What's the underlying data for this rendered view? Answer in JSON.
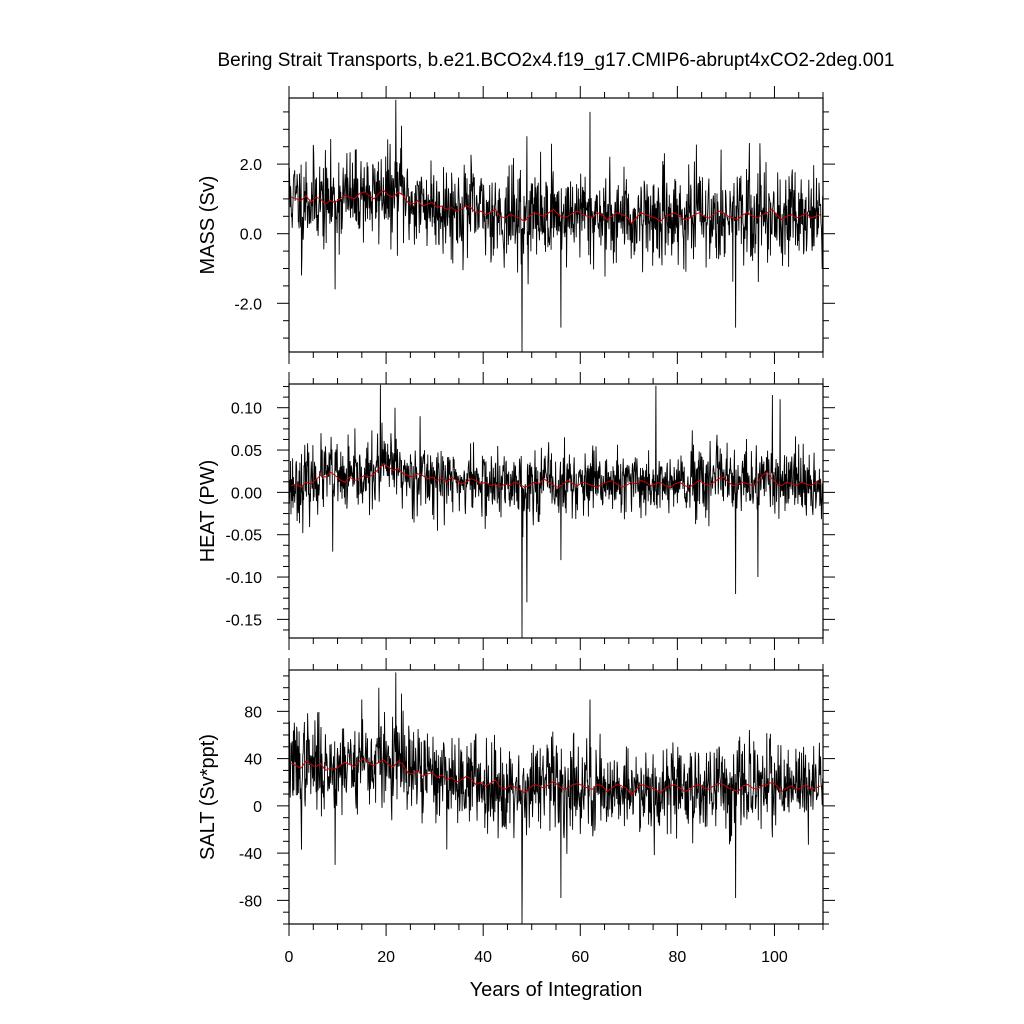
{
  "chart_data": {
    "type": "line",
    "title": "Bering Strait Transports, b.e21.BCO2x4.f19_g17.CMIP6-abrupt4xCO2-2deg.001",
    "xlabel": "Years of Integration",
    "xlim": [
      0,
      110
    ],
    "xticks": [
      0,
      20,
      40,
      60,
      80,
      100
    ],
    "series_colors": {
      "monthly": "#000000",
      "annual_mean": "#cc0000"
    },
    "panels": [
      {
        "name": "mass",
        "ylabel": "MASS (Sv)",
        "ylim": [
          -3.4,
          3.9
        ],
        "yticks": [
          2.0,
          0.0,
          -2.0
        ],
        "yticklabels": [
          "2.0",
          "0.0",
          "-2.0"
        ],
        "annual_mean": [
          1.05,
          1.0,
          0.95,
          1.1,
          0.9,
          1.05,
          1.0,
          0.85,
          0.95,
          0.9,
          1.0,
          1.1,
          1.05,
          1.0,
          1.15,
          1.2,
          1.1,
          1.0,
          1.15,
          1.25,
          1.1,
          1.05,
          1.2,
          1.1,
          0.9,
          0.85,
          0.95,
          0.8,
          0.85,
          0.9,
          0.75,
          0.8,
          0.7,
          0.75,
          0.65,
          0.7,
          0.8,
          0.75,
          0.6,
          0.65,
          0.55,
          0.6,
          0.7,
          0.5,
          0.45,
          0.55,
          0.5,
          0.45,
          0.35,
          0.5,
          0.6,
          0.55,
          0.5,
          0.6,
          0.7,
          0.55,
          0.45,
          0.5,
          0.6,
          0.65,
          0.55,
          0.5,
          0.45,
          0.6,
          0.55,
          0.4,
          0.5,
          0.6,
          0.55,
          0.5,
          0.3,
          0.45,
          0.6,
          0.55,
          0.5,
          0.45,
          0.35,
          0.5,
          0.55,
          0.6,
          0.5,
          0.4,
          0.45,
          0.55,
          0.6,
          0.5,
          0.45,
          0.55,
          0.65,
          0.6,
          0.5,
          0.45,
          0.4,
          0.55,
          0.6,
          0.5,
          0.45,
          0.55,
          0.6,
          0.7,
          0.55,
          0.4,
          0.5,
          0.55,
          0.45,
          0.5,
          0.6,
          0.45,
          0.5,
          0.55
        ],
        "noise_sd": 0.65,
        "spikes": [
          [
            22.0,
            3.85
          ],
          [
            23.2,
            3.1
          ],
          [
            48.0,
            -3.4
          ],
          [
            62.0,
            3.5
          ],
          [
            56.0,
            -2.7
          ],
          [
            92.0,
            -2.7
          ],
          [
            97.0,
            2.6
          ],
          [
            9.5,
            -1.6
          ],
          [
            2.6,
            -1.2
          ],
          [
            49.0,
            2.8
          ]
        ],
        "seed": 11
      },
      {
        "name": "heat",
        "ylabel": "HEAT (PW)",
        "ylim": [
          -0.172,
          0.128
        ],
        "yticks": [
          0.1,
          0.05,
          0.0,
          -0.05,
          -0.1,
          -0.15
        ],
        "yticklabels": [
          "0.10",
          "0.05",
          "0.00",
          "-0.05",
          "-0.10",
          "-0.15"
        ],
        "annual_mean": [
          0.008,
          0.01,
          0.006,
          0.012,
          0.01,
          0.015,
          0.02,
          0.018,
          0.024,
          0.02,
          0.015,
          0.012,
          0.018,
          0.014,
          0.016,
          0.02,
          0.018,
          0.022,
          0.028,
          0.034,
          0.03,
          0.026,
          0.028,
          0.022,
          0.02,
          0.018,
          0.022,
          0.02,
          0.016,
          0.018,
          0.014,
          0.016,
          0.012,
          0.018,
          0.014,
          0.01,
          0.012,
          0.016,
          0.014,
          0.01,
          0.012,
          0.008,
          0.01,
          0.006,
          0.01,
          0.008,
          0.012,
          0.01,
          0.006,
          0.008,
          0.012,
          0.01,
          0.016,
          0.012,
          0.008,
          0.006,
          0.01,
          0.014,
          0.01,
          0.008,
          0.012,
          0.01,
          0.008,
          0.006,
          0.01,
          0.012,
          0.014,
          0.01,
          0.006,
          0.008,
          0.012,
          0.01,
          0.014,
          0.012,
          0.008,
          0.01,
          0.012,
          0.008,
          0.006,
          0.01,
          0.012,
          0.008,
          0.006,
          0.01,
          0.014,
          0.01,
          0.008,
          0.012,
          0.016,
          0.018,
          0.012,
          0.008,
          0.01,
          0.012,
          0.01,
          0.008,
          0.012,
          0.02,
          0.024,
          0.016,
          0.01,
          0.008,
          0.012,
          0.01,
          0.008,
          0.012,
          0.01,
          0.008,
          0.012,
          0.01
        ],
        "noise_sd": 0.02,
        "spikes": [
          [
            18.8,
            0.127
          ],
          [
            21.8,
            0.1
          ],
          [
            48.0,
            -0.172
          ],
          [
            49.0,
            -0.13
          ],
          [
            9.0,
            -0.07
          ],
          [
            75.6,
            0.126
          ],
          [
            99.6,
            0.115
          ],
          [
            101.2,
            0.11
          ],
          [
            92.0,
            -0.12
          ],
          [
            56.0,
            -0.08
          ],
          [
            27.0,
            0.09
          ],
          [
            96.6,
            -0.1
          ]
        ],
        "seed": 23
      },
      {
        "name": "salt",
        "ylabel": "SALT (Sv*ppt)",
        "ylim": [
          -100,
          115
        ],
        "yticks": [
          80,
          40,
          0,
          -40,
          -80
        ],
        "yticklabels": [
          "80",
          "40",
          "0",
          "-40",
          "-80"
        ],
        "annual_mean": [
          36,
          34,
          32,
          38,
          35,
          33,
          36,
          30,
          32,
          31,
          34,
          37,
          35,
          33,
          38,
          40,
          36,
          34,
          37,
          39,
          35,
          33,
          38,
          35,
          28,
          27,
          30,
          25,
          27,
          28,
          24,
          26,
          22,
          24,
          20,
          22,
          25,
          23,
          18,
          20,
          17,
          19,
          22,
          16,
          14,
          17,
          16,
          14,
          11,
          15,
          18,
          17,
          15,
          18,
          21,
          17,
          14,
          15,
          18,
          19,
          17,
          15,
          14,
          18,
          17,
          12,
          15,
          18,
          17,
          15,
          9,
          14,
          18,
          17,
          15,
          14,
          11,
          15,
          17,
          18,
          15,
          12,
          14,
          17,
          18,
          15,
          14,
          17,
          19,
          18,
          15,
          14,
          12,
          17,
          18,
          15,
          14,
          17,
          18,
          20,
          17,
          12,
          15,
          17,
          14,
          15,
          18,
          14,
          15,
          17
        ],
        "noise_sd": 19,
        "spikes": [
          [
            22.0,
            113
          ],
          [
            23.2,
            95
          ],
          [
            48.0,
            -100
          ],
          [
            62.0,
            90
          ],
          [
            56.0,
            -78
          ],
          [
            92.0,
            -78
          ],
          [
            15.0,
            90
          ],
          [
            9.5,
            -50
          ],
          [
            2.6,
            -37
          ],
          [
            18.5,
            100
          ]
        ],
        "seed": 37
      }
    ]
  }
}
